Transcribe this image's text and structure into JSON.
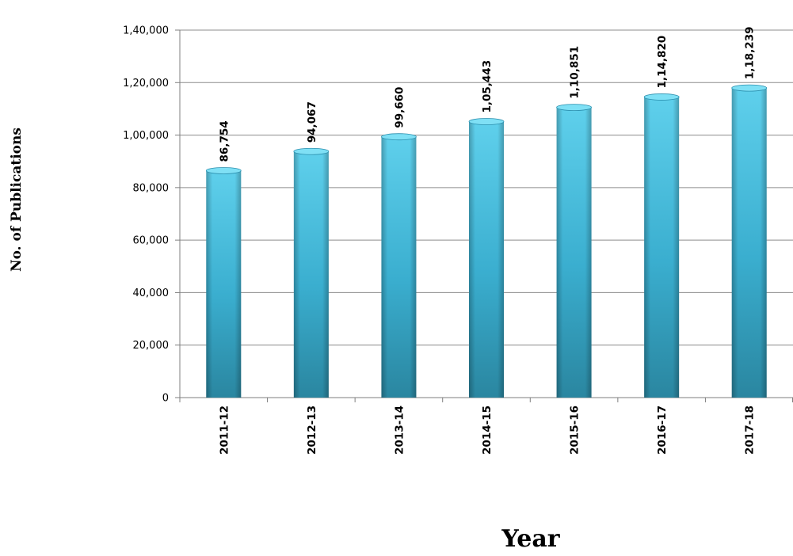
{
  "chart_data": {
    "type": "bar",
    "categories": [
      "2011-12",
      "2012-13",
      "2013-14",
      "2014-15",
      "2015-16",
      "2016-17",
      "2017-18"
    ],
    "values": [
      86754,
      94067,
      99660,
      105443,
      110851,
      114820,
      118239
    ],
    "value_labels": [
      "86,754",
      "94,067",
      "99,660",
      "1,05,443",
      "1,10,851",
      "1,14,820",
      "1,18,239"
    ],
    "title": "",
    "xlabel": "Year",
    "ylabel": "No. of Publications",
    "ylim": [
      0,
      140000
    ],
    "yticks": [
      0,
      20000,
      40000,
      60000,
      80000,
      100000,
      120000,
      140000
    ],
    "ytick_labels": [
      "0",
      "20,000",
      "40,000",
      "60,000",
      "80,000",
      "1,00,000",
      "1,20,000",
      "1,40,000"
    ],
    "grid": true,
    "legend": "none",
    "colors": {
      "bar_light": "#5fd0ec",
      "bar_mid": "#3aaecf",
      "bar_dark": "#1e6f86",
      "gridline": "#8c8c8c"
    }
  }
}
